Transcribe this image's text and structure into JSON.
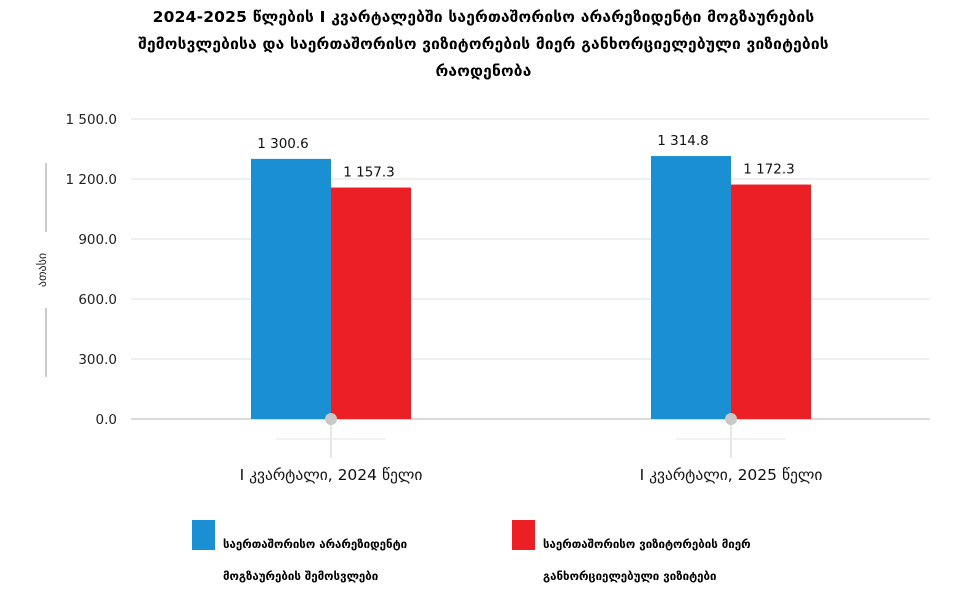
{
  "chart_data": {
    "type": "bar",
    "title_lines": [
      "2024-2025 წლების I კვარტალებში საერთაშორისო არარეზიდენტი მოგზაურების",
      "შემოსვლებისა და საერთაშორისო ვიზიტორების მიერ განხორციელებული ვიზიტების",
      "რაოდენობა"
    ],
    "ylabel": "ათასი",
    "xlabel": "",
    "ylim": [
      0,
      1500
    ],
    "y_ticks": [
      "1 500.0",
      "1 200.0",
      "900.0",
      "600.0",
      "300.0",
      "0.0"
    ],
    "y_tick_values": [
      1500,
      1200,
      900,
      600,
      300,
      0
    ],
    "categories": [
      "I კვარტალი, 2024 წელი",
      "I კვარტალი, 2025 წელი"
    ],
    "series": [
      {
        "name": "საერთაშორისო არარეზიდენტი მოგზაურების შემოსვლები",
        "color": "#1a8fd4",
        "values": [
          1300.6,
          1314.8
        ],
        "labels": [
          "1 300.6",
          "1 314.8"
        ]
      },
      {
        "name": "საერთაშორისო ვიზიტორების მიერ განხორციელებული ვიზიტები",
        "color": "#ec2024",
        "values": [
          1157.3,
          1172.3
        ],
        "labels": [
          "1 157.3",
          "1 172.3"
        ]
      }
    ],
    "grid": true,
    "legend_position": "bottom"
  },
  "legend": {
    "item1_line1": "საერთაშორისო არარეზიდენტი",
    "item1_line2": "მოგზაურების შემოსვლები",
    "item2_line1": "საერთაშორისო ვიზიტორების მიერ",
    "item2_line2": "განხორციელებული ვიზიტები"
  }
}
